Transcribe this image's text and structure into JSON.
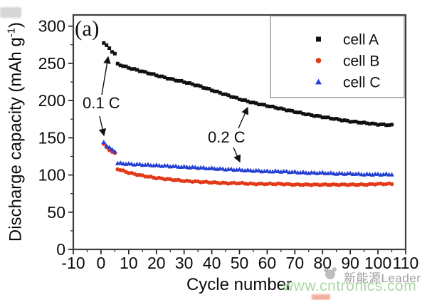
{
  "figure": {
    "panel_label": "(a)",
    "x_axis": {
      "title": "Cycle number"
    },
    "y_axis": {
      "title_prefix": "Discharge capacity (mAh g",
      "title_sup": "-1",
      "title_suffix": ")"
    },
    "annotations": [
      {
        "text": "0.1 C"
      },
      {
        "text": "0.2 C"
      }
    ]
  },
  "chart_data": {
    "type": "scatter",
    "title": "",
    "xlabel": "Cycle number",
    "ylabel": "Discharge capacity (mAh g-1)",
    "xlim": [
      -10,
      110
    ],
    "ylim": [
      0,
      315
    ],
    "grid": false,
    "legend_position": "upper right",
    "x_major_ticks": [
      -10,
      0,
      10,
      20,
      30,
      40,
      50,
      60,
      70,
      80,
      90,
      100,
      110
    ],
    "x_minor_step": 5,
    "y_major_ticks": [
      0,
      50,
      100,
      150,
      200,
      250,
      300
    ],
    "y_minor_step": 25,
    "rate_segments": [
      {
        "label": "0.1 C",
        "cycles": [
          1,
          5
        ]
      },
      {
        "label": "0.2 C",
        "cycles": [
          6,
          105
        ]
      }
    ],
    "series": [
      {
        "name": "cell A",
        "marker": "square",
        "color": "#101010",
        "points": [
          [
            1,
            278
          ],
          [
            2,
            274
          ],
          [
            3,
            270
          ],
          [
            4,
            266
          ],
          [
            5,
            263
          ],
          [
            6,
            249
          ],
          [
            10,
            244
          ],
          [
            15,
            239
          ],
          [
            20,
            234
          ],
          [
            25,
            229
          ],
          [
            30,
            225
          ],
          [
            35,
            220
          ],
          [
            40,
            214
          ],
          [
            45,
            208
          ],
          [
            50,
            202
          ],
          [
            55,
            197
          ],
          [
            60,
            193
          ],
          [
            65,
            189
          ],
          [
            70,
            185
          ],
          [
            75,
            181
          ],
          [
            80,
            178
          ],
          [
            85,
            175
          ],
          [
            90,
            172
          ],
          [
            95,
            170
          ],
          [
            100,
            168
          ],
          [
            105,
            167
          ]
        ]
      },
      {
        "name": "cell B",
        "marker": "circle",
        "color": "#e23a18",
        "points": [
          [
            1,
            141
          ],
          [
            2,
            137
          ],
          [
            3,
            134
          ],
          [
            4,
            131
          ],
          [
            5,
            129
          ],
          [
            6,
            108
          ],
          [
            10,
            103
          ],
          [
            15,
            99
          ],
          [
            20,
            96
          ],
          [
            25,
            94
          ],
          [
            30,
            92
          ],
          [
            35,
            91
          ],
          [
            40,
            90
          ],
          [
            45,
            89
          ],
          [
            50,
            89
          ],
          [
            55,
            88
          ],
          [
            60,
            88
          ],
          [
            65,
            88
          ],
          [
            70,
            87
          ],
          [
            75,
            87
          ],
          [
            80,
            87
          ],
          [
            85,
            87
          ],
          [
            90,
            87
          ],
          [
            95,
            87
          ],
          [
            100,
            88
          ],
          [
            105,
            88
          ]
        ]
      },
      {
        "name": "cell C",
        "marker": "triangle",
        "color": "#2340d2",
        "points": [
          [
            1,
            144
          ],
          [
            2,
            140
          ],
          [
            3,
            137
          ],
          [
            4,
            134
          ],
          [
            5,
            132
          ],
          [
            6,
            116
          ],
          [
            10,
            115
          ],
          [
            15,
            114
          ],
          [
            20,
            113
          ],
          [
            25,
            112
          ],
          [
            30,
            111
          ],
          [
            35,
            110
          ],
          [
            40,
            109
          ],
          [
            45,
            108
          ],
          [
            50,
            107
          ],
          [
            55,
            106
          ],
          [
            60,
            105
          ],
          [
            65,
            105
          ],
          [
            70,
            104
          ],
          [
            75,
            103
          ],
          [
            80,
            103
          ],
          [
            85,
            102
          ],
          [
            90,
            102
          ],
          [
            95,
            101
          ],
          [
            100,
            101
          ],
          [
            105,
            101
          ]
        ]
      }
    ]
  },
  "legend": {
    "items": [
      {
        "label": "cell A",
        "marker": "square",
        "color": "#101010"
      },
      {
        "label": "cell B",
        "marker": "circle",
        "color": "#e23a18"
      },
      {
        "label": "cell C",
        "marker": "triangle",
        "color": "#2340d2"
      }
    ]
  },
  "watermark": {
    "brand": "新能源Leader",
    "url": "www.cntronics.com",
    "brand_color": "#949494",
    "url_color": "#a7d6a0"
  },
  "colors": {
    "axis": "#3f3f3f",
    "tick": "#222222",
    "annotation": "#111111",
    "background": "#ffffff"
  }
}
